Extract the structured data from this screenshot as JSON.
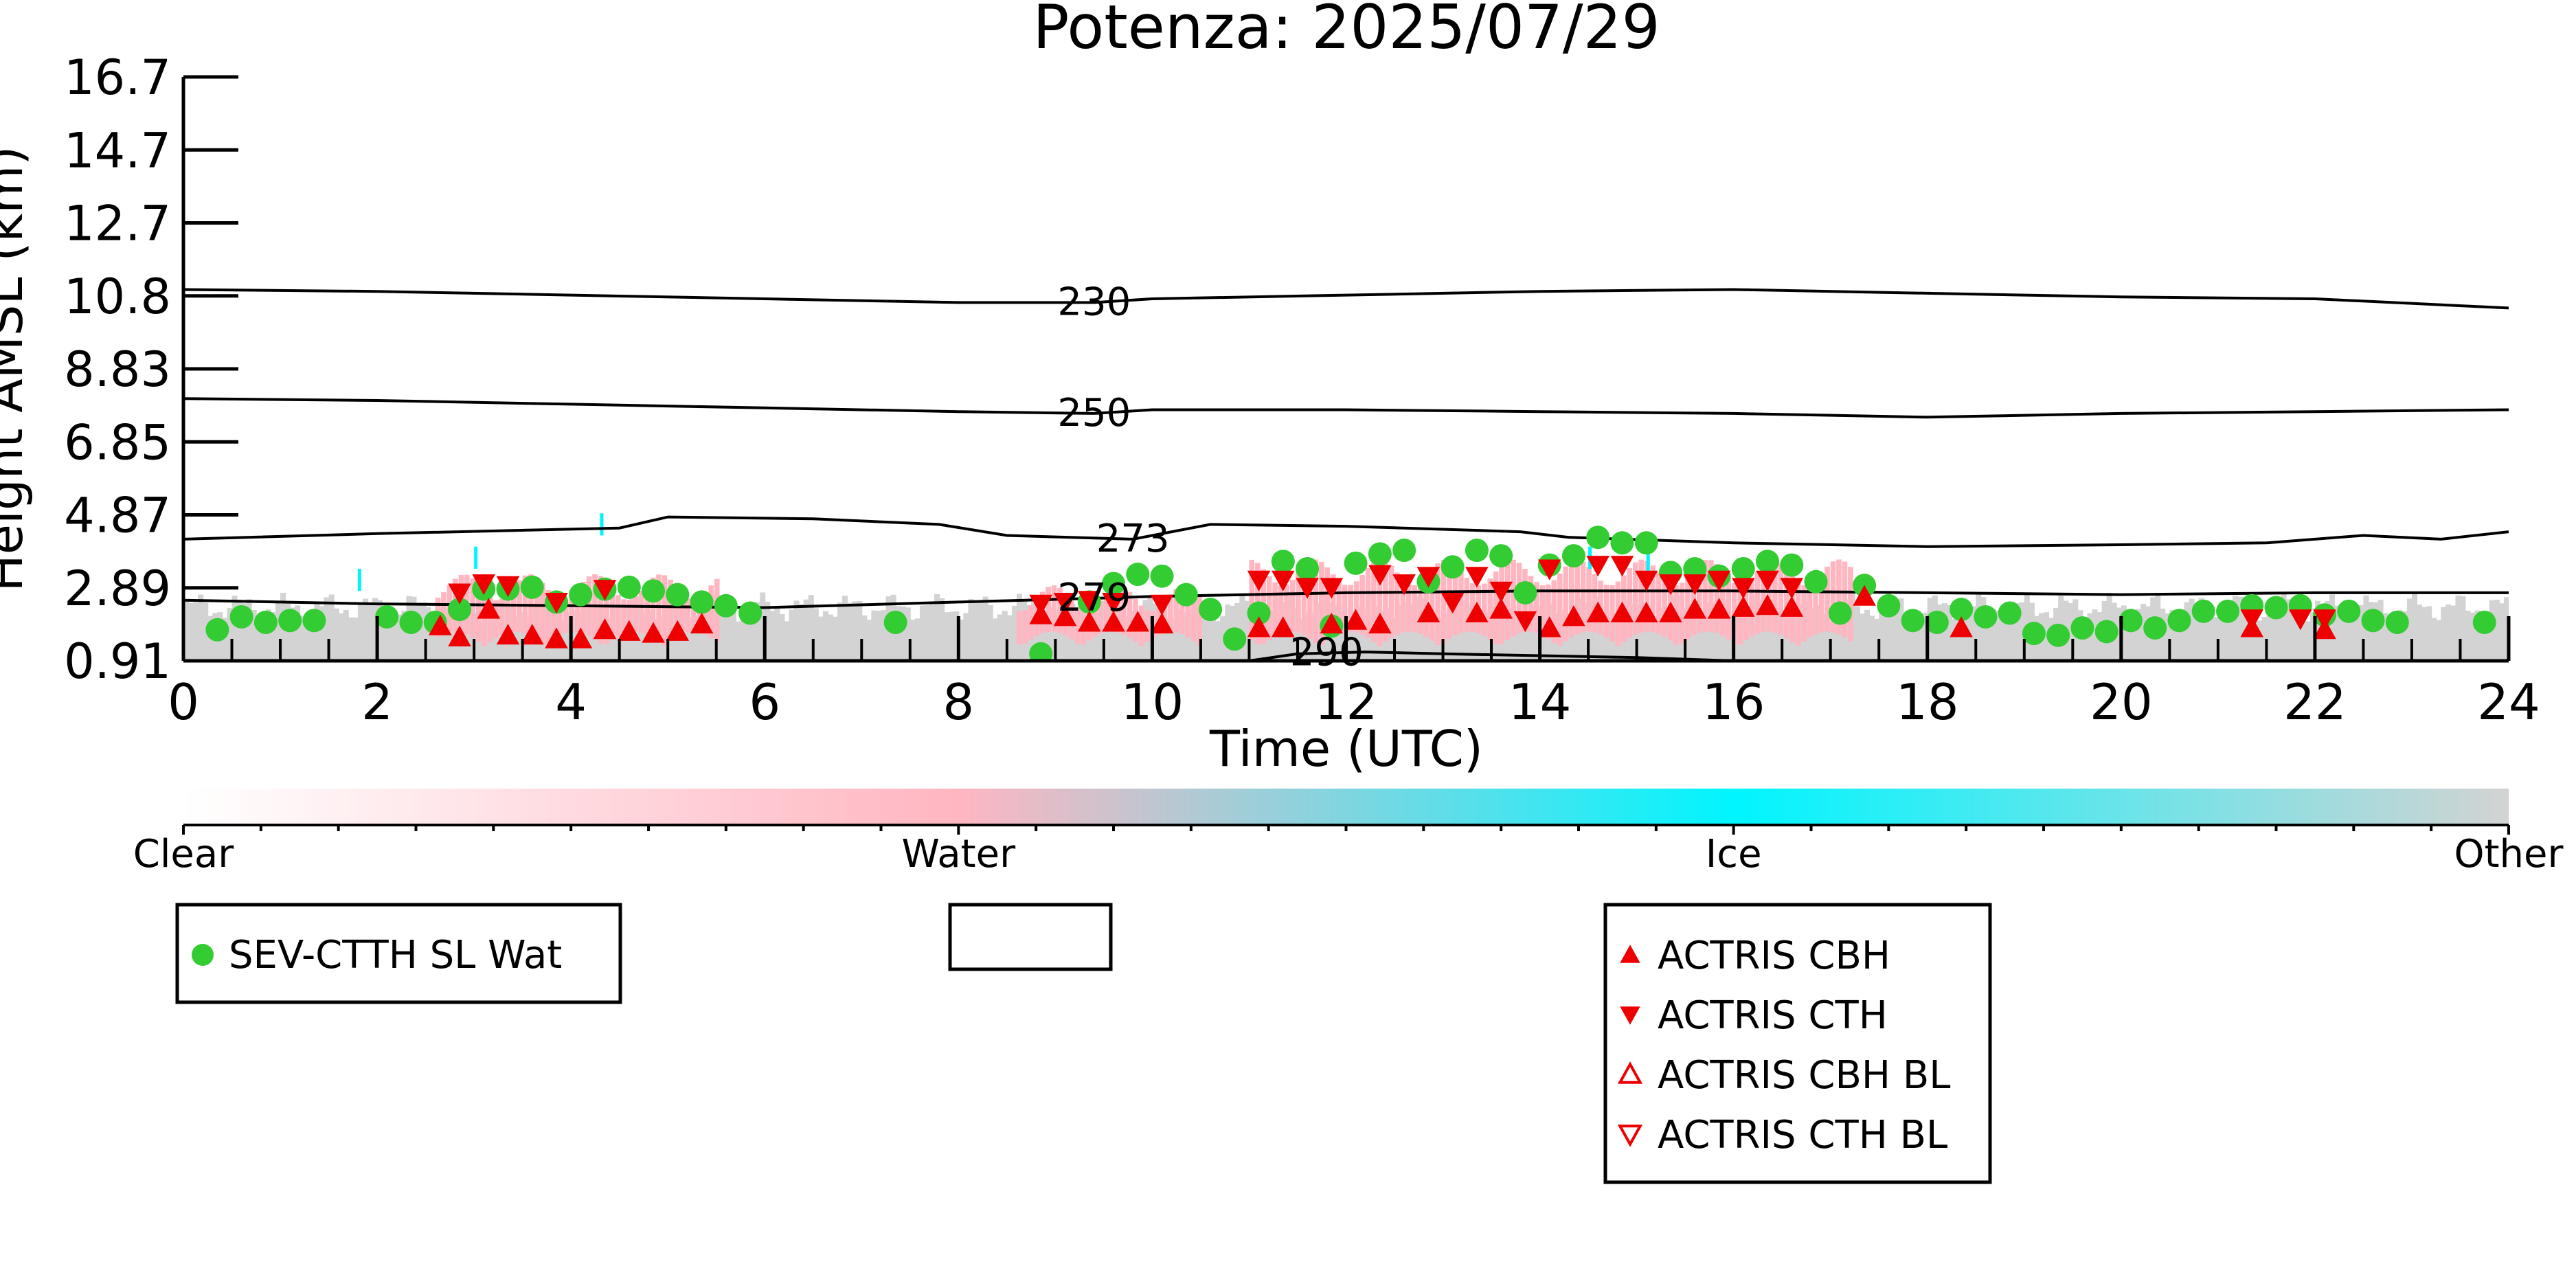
{
  "chart_data": {
    "type": "scatter",
    "title": "Potenza: 2025/07/29",
    "xlabel": "Time (UTC)",
    "ylabel": "Height AMSL (km)",
    "xlim": [
      0,
      24
    ],
    "ylim": [
      0.91,
      16.7
    ],
    "x_ticks": [
      "0",
      "2",
      "4",
      "6",
      "8",
      "10",
      "12",
      "14",
      "16",
      "18",
      "20",
      "22",
      "24"
    ],
    "y_ticks": [
      "0.91",
      "2.89",
      "4.87",
      "6.85",
      "8.83",
      "10.8",
      "12.7",
      "14.7",
      "16.7"
    ],
    "temperature_contours": [
      {
        "label": "230",
        "label_x": 9.4,
        "points": [
          [
            0,
            10.95
          ],
          [
            2,
            10.9
          ],
          [
            4,
            10.8
          ],
          [
            6,
            10.7
          ],
          [
            8,
            10.6
          ],
          [
            9.4,
            10.6
          ],
          [
            10,
            10.7
          ],
          [
            12,
            10.8
          ],
          [
            14,
            10.9
          ],
          [
            16,
            10.95
          ],
          [
            18,
            10.85
          ],
          [
            20,
            10.75
          ],
          [
            22,
            10.7
          ],
          [
            24,
            10.45
          ]
        ]
      },
      {
        "label": "250",
        "label_x": 9.4,
        "points": [
          [
            0,
            8.0
          ],
          [
            2,
            7.95
          ],
          [
            4,
            7.85
          ],
          [
            6,
            7.75
          ],
          [
            8,
            7.65
          ],
          [
            9.4,
            7.6
          ],
          [
            10,
            7.7
          ],
          [
            12,
            7.7
          ],
          [
            14,
            7.65
          ],
          [
            16,
            7.6
          ],
          [
            18,
            7.5
          ],
          [
            20,
            7.6
          ],
          [
            22,
            7.65
          ],
          [
            24,
            7.7
          ]
        ]
      },
      {
        "label": "273",
        "label_x": 9.8,
        "points": [
          [
            0,
            4.2
          ],
          [
            2,
            4.35
          ],
          [
            4.5,
            4.5
          ],
          [
            5,
            4.8
          ],
          [
            6.5,
            4.75
          ],
          [
            7.8,
            4.6
          ],
          [
            8.5,
            4.3
          ],
          [
            9.8,
            4.2
          ],
          [
            10.6,
            4.6
          ],
          [
            12,
            4.55
          ],
          [
            13.8,
            4.4
          ],
          [
            14.3,
            4.25
          ],
          [
            16,
            4.1
          ],
          [
            18,
            4.0
          ],
          [
            20,
            4.05
          ],
          [
            21.5,
            4.1
          ],
          [
            22.5,
            4.3
          ],
          [
            23.3,
            4.2
          ],
          [
            24,
            4.4
          ]
        ]
      },
      {
        "label": "279",
        "label_x": 9.4,
        "points": [
          [
            0,
            2.55
          ],
          [
            2,
            2.45
          ],
          [
            4,
            2.4
          ],
          [
            6,
            2.35
          ],
          [
            8,
            2.5
          ],
          [
            9.4,
            2.6
          ],
          [
            10,
            2.65
          ],
          [
            12,
            2.75
          ],
          [
            14,
            2.8
          ],
          [
            16,
            2.8
          ],
          [
            18,
            2.75
          ],
          [
            20,
            2.7
          ],
          [
            22,
            2.75
          ],
          [
            24,
            2.75
          ]
        ]
      },
      {
        "label": "290",
        "label_x": 11.8,
        "points": [
          [
            11.0,
            0.91
          ],
          [
            11.5,
            1.1
          ],
          [
            12.2,
            1.15
          ],
          [
            13,
            1.1
          ],
          [
            14,
            1.05
          ],
          [
            15,
            1.0
          ],
          [
            16,
            0.91
          ]
        ]
      }
    ],
    "classification_colorbar": {
      "labels": [
        "Clear",
        "Water",
        "Ice",
        "Other"
      ],
      "colors": [
        "#ffffff",
        "#ffb6c1",
        "#00f5ff",
        "#d3d3d3"
      ]
    },
    "series": [
      {
        "name": "SEV-CTTH SL Wat",
        "marker": "circle",
        "color": "#33cc33",
        "points": [
          [
            0.35,
            1.75
          ],
          [
            0.6,
            2.1
          ],
          [
            0.85,
            1.95
          ],
          [
            1.1,
            2.0
          ],
          [
            1.35,
            2.0
          ],
          [
            2.1,
            2.1
          ],
          [
            2.35,
            1.95
          ],
          [
            2.6,
            1.95
          ],
          [
            2.85,
            2.3
          ],
          [
            3.1,
            2.85
          ],
          [
            3.35,
            2.85
          ],
          [
            3.6,
            2.9
          ],
          [
            3.85,
            2.5
          ],
          [
            4.1,
            2.7
          ],
          [
            4.35,
            2.85
          ],
          [
            4.6,
            2.9
          ],
          [
            4.85,
            2.8
          ],
          [
            5.1,
            2.7
          ],
          [
            5.35,
            2.5
          ],
          [
            5.6,
            2.4
          ],
          [
            5.85,
            2.2
          ],
          [
            7.35,
            1.95
          ],
          [
            8.85,
            1.1
          ],
          [
            9.35,
            2.5
          ],
          [
            9.6,
            3.0
          ],
          [
            9.85,
            3.25
          ],
          [
            10.1,
            3.2
          ],
          [
            10.35,
            2.7
          ],
          [
            10.6,
            2.3
          ],
          [
            10.85,
            1.5
          ],
          [
            11.1,
            2.2
          ],
          [
            11.35,
            3.6
          ],
          [
            11.6,
            3.4
          ],
          [
            11.85,
            1.85
          ],
          [
            12.1,
            3.55
          ],
          [
            12.35,
            3.8
          ],
          [
            12.6,
            3.9
          ],
          [
            12.85,
            3.05
          ],
          [
            13.1,
            3.45
          ],
          [
            13.35,
            3.9
          ],
          [
            13.6,
            3.75
          ],
          [
            13.85,
            2.75
          ],
          [
            14.1,
            3.5
          ],
          [
            14.35,
            3.75
          ],
          [
            14.6,
            4.25
          ],
          [
            14.85,
            4.1
          ],
          [
            15.1,
            4.1
          ],
          [
            15.35,
            3.3
          ],
          [
            15.6,
            3.4
          ],
          [
            15.85,
            3.2
          ],
          [
            16.1,
            3.4
          ],
          [
            16.35,
            3.6
          ],
          [
            16.6,
            3.5
          ],
          [
            16.85,
            3.05
          ],
          [
            17.1,
            2.2
          ],
          [
            17.35,
            2.95
          ],
          [
            17.6,
            2.4
          ],
          [
            17.85,
            2.0
          ],
          [
            18.1,
            1.95
          ],
          [
            18.35,
            2.3
          ],
          [
            18.6,
            2.1
          ],
          [
            18.85,
            2.2
          ],
          [
            19.1,
            1.65
          ],
          [
            19.35,
            1.6
          ],
          [
            19.6,
            1.8
          ],
          [
            19.85,
            1.7
          ],
          [
            20.1,
            2.0
          ],
          [
            20.35,
            1.8
          ],
          [
            20.6,
            2.0
          ],
          [
            20.85,
            2.25
          ],
          [
            21.1,
            2.25
          ],
          [
            21.35,
            2.4
          ],
          [
            21.6,
            2.35
          ],
          [
            21.85,
            2.4
          ],
          [
            22.1,
            2.15
          ],
          [
            22.35,
            2.25
          ],
          [
            22.6,
            2.0
          ],
          [
            22.85,
            1.95
          ],
          [
            23.75,
            1.95
          ]
        ]
      },
      {
        "name": "ACTRIS CBH",
        "marker": "triangle-up",
        "color": "#ee0000",
        "points": [
          [
            2.65,
            1.85
          ],
          [
            2.85,
            1.55
          ],
          [
            3.15,
            2.3
          ],
          [
            3.35,
            1.6
          ],
          [
            3.6,
            1.6
          ],
          [
            3.85,
            1.5
          ],
          [
            4.1,
            1.5
          ],
          [
            4.35,
            1.75
          ],
          [
            4.6,
            1.7
          ],
          [
            4.85,
            1.65
          ],
          [
            5.1,
            1.7
          ],
          [
            5.35,
            1.9
          ],
          [
            8.85,
            2.15
          ],
          [
            9.1,
            2.1
          ],
          [
            9.35,
            1.95
          ],
          [
            9.6,
            1.95
          ],
          [
            9.85,
            1.95
          ],
          [
            10.1,
            1.9
          ],
          [
            11.1,
            1.8
          ],
          [
            11.35,
            1.8
          ],
          [
            11.85,
            1.9
          ],
          [
            12.1,
            2.0
          ],
          [
            12.35,
            1.9
          ],
          [
            12.85,
            2.2
          ],
          [
            13.35,
            2.2
          ],
          [
            13.6,
            2.3
          ],
          [
            14.1,
            1.8
          ],
          [
            14.35,
            2.1
          ],
          [
            14.6,
            2.2
          ],
          [
            14.85,
            2.2
          ],
          [
            15.1,
            2.2
          ],
          [
            15.35,
            2.2
          ],
          [
            15.6,
            2.3
          ],
          [
            15.85,
            2.3
          ],
          [
            16.1,
            2.35
          ],
          [
            16.35,
            2.4
          ],
          [
            16.6,
            2.35
          ],
          [
            17.35,
            2.65
          ],
          [
            18.35,
            1.8
          ],
          [
            21.35,
            1.8
          ],
          [
            22.1,
            1.75
          ]
        ]
      },
      {
        "name": "ACTRIS CTH",
        "marker": "triangle-down",
        "color": "#ee0000",
        "points": [
          [
            2.85,
            2.75
          ],
          [
            3.1,
            3.0
          ],
          [
            3.35,
            2.95
          ],
          [
            3.85,
            2.5
          ],
          [
            4.35,
            2.85
          ],
          [
            8.85,
            2.45
          ],
          [
            9.1,
            2.5
          ],
          [
            9.35,
            2.55
          ],
          [
            9.6,
            2.5
          ],
          [
            10.1,
            2.45
          ],
          [
            11.1,
            3.1
          ],
          [
            11.35,
            3.1
          ],
          [
            11.6,
            2.9
          ],
          [
            11.85,
            2.9
          ],
          [
            12.35,
            3.25
          ],
          [
            12.6,
            3.0
          ],
          [
            12.85,
            3.2
          ],
          [
            13.1,
            2.5
          ],
          [
            13.35,
            3.2
          ],
          [
            13.6,
            2.8
          ],
          [
            13.85,
            2.0
          ],
          [
            14.1,
            3.4
          ],
          [
            14.6,
            3.5
          ],
          [
            14.85,
            3.5
          ],
          [
            15.1,
            3.1
          ],
          [
            15.35,
            3.0
          ],
          [
            15.6,
            3.0
          ],
          [
            15.85,
            3.1
          ],
          [
            16.1,
            2.9
          ],
          [
            16.35,
            3.1
          ],
          [
            16.6,
            2.9
          ],
          [
            21.35,
            2.05
          ],
          [
            21.85,
            2.05
          ],
          [
            22.1,
            2.05
          ]
        ]
      },
      {
        "name": "ACTRIS CBH BL",
        "marker": "triangle-up-open",
        "color": "#ee0000",
        "points": []
      },
      {
        "name": "ACTRIS CTH BL",
        "marker": "triangle-down-open",
        "color": "#ee0000",
        "points": []
      }
    ]
  }
}
